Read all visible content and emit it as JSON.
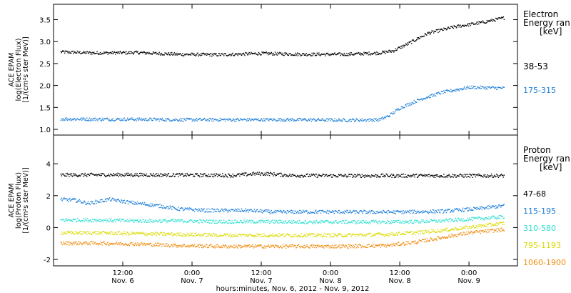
{
  "colors": {
    "electron": [
      "#000000",
      "#1f7fd8"
    ],
    "proton": [
      "#000000",
      "#1f7fd8",
      "#2ee0d0",
      "#dada00",
      "#f08c10"
    ]
  },
  "x_axis": {
    "ticks": [
      {
        "t": 0.5,
        "time": "12:00",
        "date": "Nov. 6"
      },
      {
        "t": 1.0,
        "time": "0:00",
        "date": "Nov. 7"
      },
      {
        "t": 1.5,
        "time": "12:00",
        "date": "Nov. 7"
      },
      {
        "t": 2.0,
        "time": "0:00",
        "date": "Nov. 8"
      },
      {
        "t": 2.5,
        "time": "12:00",
        "date": "Nov. 8"
      },
      {
        "t": 3.0,
        "time": "0:00",
        "date": "Nov. 9"
      }
    ],
    "label": "hours:minutes, Nov.  6, 2012 - Nov.  9, 2012"
  },
  "chart_data": [
    {
      "type": "scatter",
      "ylabel_lines": [
        "ACE EPAM",
        "log(Electron Flux)",
        "[1/(cm²s ster MeV)]"
      ],
      "xlim": [
        0.0,
        3.35
      ],
      "ylim": [
        0.87,
        3.85
      ],
      "yticks": [
        1.0,
        1.5,
        2.0,
        2.5,
        3.0,
        3.5
      ],
      "legend_title_lines": [
        "Electron",
        "Energy ran",
        "[keV]"
      ],
      "series": [
        {
          "name": "38-53",
          "points": [
            [
              0.0,
              2.78
            ],
            [
              0.3,
              2.75
            ],
            [
              0.6,
              2.76
            ],
            [
              0.9,
              2.72
            ],
            [
              1.2,
              2.71
            ],
            [
              1.5,
              2.74
            ],
            [
              1.8,
              2.72
            ],
            [
              2.1,
              2.72
            ],
            [
              2.35,
              2.75
            ],
            [
              2.45,
              2.8
            ],
            [
              2.55,
              2.95
            ],
            [
              2.7,
              3.2
            ],
            [
              2.9,
              3.35
            ],
            [
              3.1,
              3.45
            ],
            [
              3.25,
              3.55
            ]
          ]
        },
        {
          "name": "175-315",
          "points": [
            [
              0.0,
              1.25
            ],
            [
              0.3,
              1.24
            ],
            [
              0.6,
              1.24
            ],
            [
              0.9,
              1.23
            ],
            [
              1.2,
              1.23
            ],
            [
              1.5,
              1.23
            ],
            [
              1.8,
              1.23
            ],
            [
              2.1,
              1.22
            ],
            [
              2.35,
              1.23
            ],
            [
              2.42,
              1.32
            ],
            [
              2.5,
              1.5
            ],
            [
              2.65,
              1.7
            ],
            [
              2.8,
              1.85
            ],
            [
              3.0,
              1.97
            ],
            [
              3.25,
              1.95
            ]
          ]
        }
      ]
    },
    {
      "type": "scatter",
      "ylabel_lines": [
        "ACE EPAM",
        "log(Proton Flux)",
        "[1/(cm²s ster MeV)]"
      ],
      "xlim": [
        0.0,
        3.35
      ],
      "ylim": [
        -2.4,
        5.8
      ],
      "yticks": [
        -2,
        0,
        2,
        4
      ],
      "legend_title_lines": [
        "Proton",
        "Energy ran",
        "[keV]"
      ],
      "series": [
        {
          "name": "47-68",
          "points": [
            [
              0.0,
              3.32
            ],
            [
              0.5,
              3.34
            ],
            [
              1.0,
              3.32
            ],
            [
              1.3,
              3.3
            ],
            [
              1.45,
              3.4
            ],
            [
              1.55,
              3.4
            ],
            [
              1.7,
              3.3
            ],
            [
              2.0,
              3.28
            ],
            [
              2.5,
              3.28
            ],
            [
              3.0,
              3.28
            ],
            [
              3.25,
              3.28
            ]
          ]
        },
        {
          "name": "115-195",
          "points": [
            [
              0.0,
              1.82
            ],
            [
              0.15,
              1.75
            ],
            [
              0.25,
              1.55
            ],
            [
              0.4,
              1.8
            ],
            [
              0.55,
              1.6
            ],
            [
              0.75,
              1.4
            ],
            [
              0.9,
              1.2
            ],
            [
              1.1,
              1.1
            ],
            [
              1.4,
              1.1
            ],
            [
              1.6,
              1.0
            ],
            [
              1.9,
              1.02
            ],
            [
              2.2,
              1.0
            ],
            [
              2.5,
              1.0
            ],
            [
              2.8,
              1.05
            ],
            [
              3.05,
              1.2
            ],
            [
              3.25,
              1.4
            ]
          ]
        },
        {
          "name": "310-580",
          "points": [
            [
              0.0,
              0.5
            ],
            [
              0.3,
              0.5
            ],
            [
              0.6,
              0.45
            ],
            [
              0.9,
              0.45
            ],
            [
              1.2,
              0.4
            ],
            [
              1.5,
              0.4
            ],
            [
              1.8,
              0.38
            ],
            [
              2.1,
              0.38
            ],
            [
              2.4,
              0.38
            ],
            [
              2.6,
              0.4
            ],
            [
              2.8,
              0.45
            ],
            [
              3.0,
              0.55
            ],
            [
              3.25,
              0.7
            ]
          ]
        },
        {
          "name": "795-1193",
          "points": [
            [
              0.0,
              -0.3
            ],
            [
              0.3,
              -0.3
            ],
            [
              0.6,
              -0.35
            ],
            [
              0.9,
              -0.4
            ],
            [
              1.2,
              -0.45
            ],
            [
              1.5,
              -0.45
            ],
            [
              1.8,
              -0.45
            ],
            [
              2.1,
              -0.45
            ],
            [
              2.4,
              -0.4
            ],
            [
              2.6,
              -0.3
            ],
            [
              2.8,
              -0.15
            ],
            [
              3.0,
              0.05
            ],
            [
              3.25,
              0.3
            ]
          ]
        },
        {
          "name": "1060-1900",
          "points": [
            [
              0.0,
              -0.95
            ],
            [
              0.3,
              -0.95
            ],
            [
              0.6,
              -1.0
            ],
            [
              0.9,
              -1.1
            ],
            [
              1.2,
              -1.15
            ],
            [
              1.5,
              -1.15
            ],
            [
              1.8,
              -1.15
            ],
            [
              2.1,
              -1.15
            ],
            [
              2.4,
              -1.1
            ],
            [
              2.6,
              -0.9
            ],
            [
              2.8,
              -0.6
            ],
            [
              3.0,
              -0.3
            ],
            [
              3.25,
              -0.1
            ]
          ]
        }
      ]
    }
  ]
}
